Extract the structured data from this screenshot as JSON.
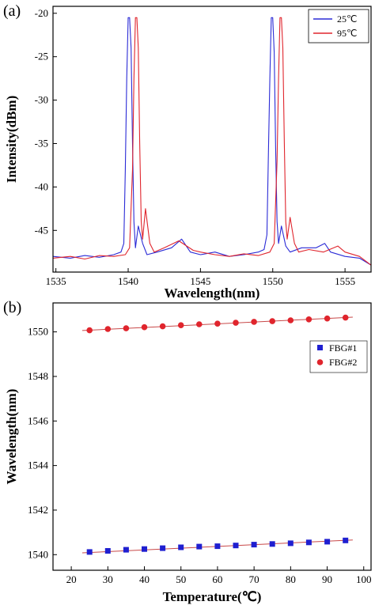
{
  "chart_data": [
    {
      "panel_label": "(a)",
      "type": "line",
      "xlabel": "Wavelength(nm)",
      "ylabel": "Intensity(dBm)",
      "xlim": [
        1534.8,
        1556.8
      ],
      "ylim": [
        -49.8,
        -19.2
      ],
      "xticks": [
        1535,
        1540,
        1545,
        1550,
        1555
      ],
      "yticks": [
        -20,
        -25,
        -30,
        -35,
        -40,
        -45
      ],
      "legend_position": "top-right",
      "series": [
        {
          "name": "25℃",
          "color": "#2b2bd6",
          "x": [
            1534.8,
            1536.0,
            1537.0,
            1538.0,
            1539.0,
            1539.5,
            1539.7,
            1539.8,
            1539.9,
            1540.0,
            1540.1,
            1540.2,
            1540.3,
            1540.4,
            1540.5,
            1540.7,
            1541.0,
            1541.3,
            1542.0,
            1543.0,
            1543.7,
            1544.3,
            1545.0,
            1546.0,
            1547.0,
            1548.0,
            1549.0,
            1549.4,
            1549.6,
            1549.7,
            1549.8,
            1549.9,
            1550.0,
            1550.1,
            1550.2,
            1550.3,
            1550.4,
            1550.6,
            1550.9,
            1551.2,
            1552.0,
            1553.0,
            1553.6,
            1554.0,
            1555.0,
            1556.0,
            1556.8
          ],
          "y": [
            -48.0,
            -48.2,
            -47.9,
            -48.1,
            -47.8,
            -47.5,
            -46.5,
            -38.0,
            -27.5,
            -20.5,
            -20.5,
            -24.0,
            -35.0,
            -44.0,
            -47.0,
            -44.5,
            -46.5,
            -47.8,
            -47.5,
            -47.0,
            -46.0,
            -47.5,
            -47.8,
            -47.5,
            -48.0,
            -47.8,
            -47.5,
            -47.2,
            -45.5,
            -36.0,
            -27.5,
            -20.5,
            -20.5,
            -24.5,
            -35.5,
            -44.0,
            -46.5,
            -44.5,
            -46.8,
            -47.5,
            -47.0,
            -47.0,
            -46.5,
            -47.5,
            -48.0,
            -48.2,
            -49.0
          ]
        },
        {
          "name": "95℃",
          "color": "#e0252d",
          "x": [
            1534.8,
            1536.0,
            1537.0,
            1538.0,
            1539.0,
            1539.8,
            1540.1,
            1540.3,
            1540.4,
            1540.5,
            1540.6,
            1540.7,
            1540.8,
            1540.9,
            1541.0,
            1541.2,
            1541.5,
            1541.8,
            1542.5,
            1543.5,
            1544.5,
            1545.0,
            1546.0,
            1547.0,
            1548.0,
            1549.0,
            1549.8,
            1550.1,
            1550.3,
            1550.4,
            1550.5,
            1550.6,
            1550.7,
            1550.8,
            1550.9,
            1551.0,
            1551.2,
            1551.5,
            1551.8,
            1552.5,
            1553.5,
            1554.5,
            1555.0,
            1556.0,
            1556.8
          ],
          "y": [
            -48.2,
            -48.0,
            -48.3,
            -47.9,
            -48.0,
            -47.8,
            -47.0,
            -38.0,
            -27.5,
            -20.5,
            -20.5,
            -24.0,
            -35.0,
            -44.0,
            -46.0,
            -42.5,
            -46.5,
            -47.5,
            -47.0,
            -46.2,
            -47.3,
            -47.5,
            -47.8,
            -48.0,
            -47.7,
            -47.9,
            -47.5,
            -46.5,
            -37.0,
            -27.5,
            -20.5,
            -20.5,
            -24.0,
            -35.0,
            -44.0,
            -46.0,
            -43.5,
            -46.5,
            -47.5,
            -47.2,
            -47.5,
            -46.8,
            -47.5,
            -48.0,
            -49.0
          ]
        }
      ]
    },
    {
      "panel_label": "(b)",
      "type": "scatter",
      "xlabel": "Temperature(℃)",
      "ylabel": "Wavelength(nm)",
      "xlim": [
        15,
        102
      ],
      "ylim": [
        1539.3,
        1551.3
      ],
      "xticks": [
        20,
        30,
        40,
        50,
        60,
        70,
        80,
        90,
        100
      ],
      "yticks": [
        1540,
        1542,
        1544,
        1546,
        1548,
        1550
      ],
      "legend_position": "right",
      "series": [
        {
          "name": "FBG#1",
          "marker": "square",
          "color": "#1f1fd0",
          "x": [
            25,
            30,
            35,
            40,
            45,
            50,
            55,
            60,
            65,
            70,
            75,
            80,
            85,
            90,
            95
          ],
          "y": [
            1540.12,
            1540.17,
            1540.22,
            1540.25,
            1540.29,
            1540.33,
            1540.36,
            1540.38,
            1540.41,
            1540.45,
            1540.48,
            1540.51,
            1540.55,
            1540.58,
            1540.64
          ],
          "fit_line": {
            "x": [
              23,
              97
            ],
            "y": [
              1540.08,
              1540.66
            ],
            "color": "#c84848"
          }
        },
        {
          "name": "FBG#2",
          "marker": "circle",
          "color": "#e0252d",
          "x": [
            25,
            30,
            35,
            40,
            45,
            50,
            55,
            60,
            65,
            70,
            75,
            80,
            85,
            90,
            95
          ],
          "y": [
            1550.07,
            1550.13,
            1550.16,
            1550.21,
            1550.25,
            1550.3,
            1550.34,
            1550.37,
            1550.41,
            1550.45,
            1550.48,
            1550.52,
            1550.56,
            1550.6,
            1550.64
          ],
          "fit_line": {
            "x": [
              23,
              97
            ],
            "y": [
              1550.06,
              1550.66
            ],
            "color": "#c84848"
          }
        }
      ]
    }
  ]
}
